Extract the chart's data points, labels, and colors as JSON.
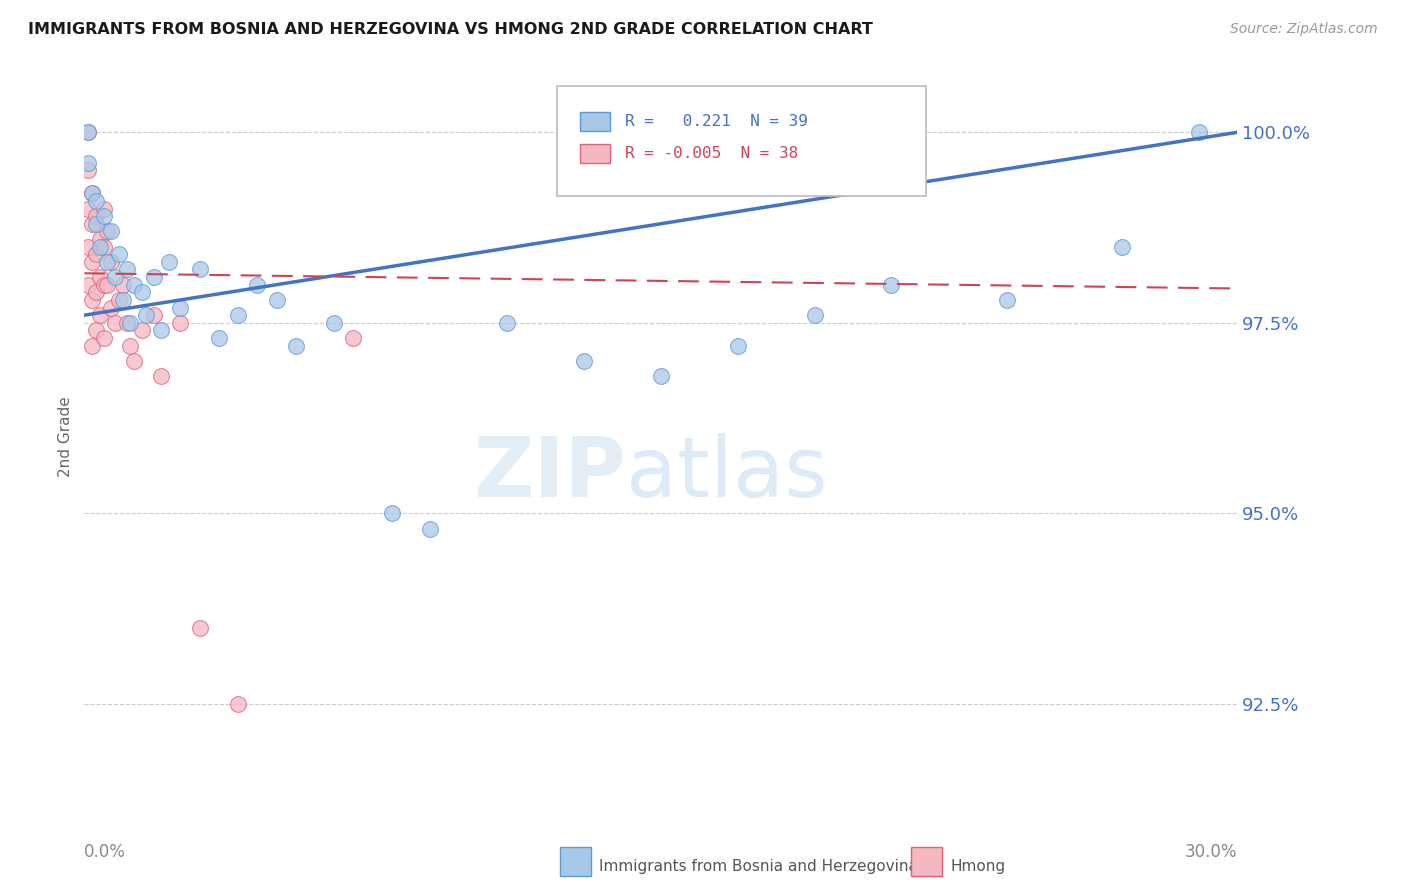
{
  "title": "IMMIGRANTS FROM BOSNIA AND HERZEGOVINA VS HMONG 2ND GRADE CORRELATION CHART",
  "source": "Source: ZipAtlas.com",
  "ylabel": "2nd Grade",
  "yticks": [
    92.5,
    95.0,
    97.5,
    100.0
  ],
  "xmin": 0.0,
  "xmax": 0.3,
  "ymin": 91.2,
  "ymax": 100.8,
  "R_bos": 0.221,
  "N_bos": 39,
  "R_hmong": -0.005,
  "N_hmong": 38,
  "color_blue_fill": "#a8c8e8",
  "color_blue_edge": "#5b9bd5",
  "color_blue_line": "#4472c4",
  "color_pink_fill": "#f4b8c1",
  "color_pink_edge": "#e06080",
  "color_pink_line": "#cc4455",
  "color_text_blue": "#4472c4",
  "color_axis_label": "#666666",
  "color_grid": "#cccccc",
  "bosnia_x": [
    0.001,
    0.001,
    0.002,
    0.003,
    0.003,
    0.004,
    0.005,
    0.006,
    0.007,
    0.008,
    0.009,
    0.01,
    0.011,
    0.012,
    0.013,
    0.015,
    0.016,
    0.018,
    0.02,
    0.022,
    0.025,
    0.03,
    0.035,
    0.04,
    0.045,
    0.05,
    0.055,
    0.065,
    0.08,
    0.09,
    0.11,
    0.13,
    0.15,
    0.17,
    0.19,
    0.21,
    0.24,
    0.27,
    0.29
  ],
  "bosnia_y": [
    99.6,
    100.0,
    99.2,
    98.8,
    99.1,
    98.5,
    98.9,
    98.3,
    98.7,
    98.1,
    98.4,
    97.8,
    98.2,
    97.5,
    98.0,
    97.9,
    97.6,
    98.1,
    97.4,
    98.3,
    97.7,
    98.2,
    97.3,
    97.6,
    98.0,
    97.8,
    97.2,
    97.5,
    95.0,
    94.8,
    97.5,
    97.0,
    96.8,
    97.2,
    97.6,
    98.0,
    97.8,
    98.5,
    100.0
  ],
  "hmong_x": [
    0.001,
    0.001,
    0.001,
    0.001,
    0.001,
    0.002,
    0.002,
    0.002,
    0.002,
    0.002,
    0.003,
    0.003,
    0.003,
    0.003,
    0.004,
    0.004,
    0.004,
    0.005,
    0.005,
    0.005,
    0.005,
    0.006,
    0.006,
    0.007,
    0.007,
    0.008,
    0.009,
    0.01,
    0.011,
    0.012,
    0.013,
    0.015,
    0.018,
    0.02,
    0.025,
    0.03,
    0.04,
    0.07
  ],
  "hmong_y": [
    100.0,
    99.5,
    99.0,
    98.5,
    98.0,
    99.2,
    98.8,
    98.3,
    97.8,
    97.2,
    98.9,
    98.4,
    97.9,
    97.4,
    98.6,
    98.1,
    97.6,
    99.0,
    98.5,
    98.0,
    97.3,
    98.7,
    98.0,
    98.3,
    97.7,
    97.5,
    97.8,
    98.0,
    97.5,
    97.2,
    97.0,
    97.4,
    97.6,
    96.8,
    97.5,
    93.5,
    92.5,
    97.3
  ],
  "bos_trend_x": [
    0.0,
    0.3
  ],
  "bos_trend_y": [
    97.6,
    100.0
  ],
  "hmong_trend_x": [
    0.0,
    0.3
  ],
  "hmong_trend_y": [
    98.15,
    97.95
  ]
}
